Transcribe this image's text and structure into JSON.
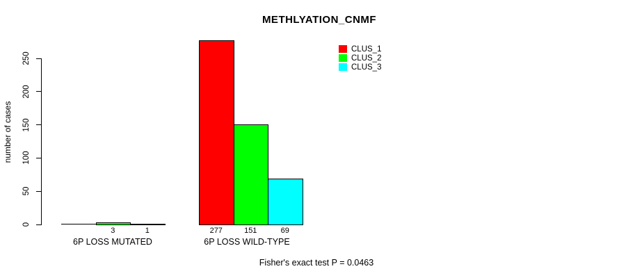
{
  "chart_data": {
    "type": "bar",
    "title": "METHLYATION_CNMF",
    "ylabel": "number of cases",
    "xlabel": "",
    "categories": [
      "6P LOSS MUTATED",
      "6P LOSS WILD-TYPE"
    ],
    "series": [
      {
        "name": "CLUS_1",
        "color": "#ff0000",
        "values": [
          0,
          277
        ],
        "bar_labels": [
          "",
          "277"
        ]
      },
      {
        "name": "CLUS_2",
        "color": "#00ff00",
        "values": [
          3,
          151
        ],
        "bar_labels": [
          "3",
          "151"
        ]
      },
      {
        "name": "CLUS_3",
        "color": "#00ffff",
        "values": [
          1,
          69
        ],
        "bar_labels": [
          "1",
          "69"
        ]
      }
    ],
    "y_ticks": [
      0,
      50,
      100,
      150,
      200,
      250
    ],
    "ylim": [
      0,
      277
    ],
    "grid": false,
    "legend_position": "top-right",
    "bar_outline_color": "#000000",
    "annotation": "Fisher's exact test P = 0.0463"
  }
}
